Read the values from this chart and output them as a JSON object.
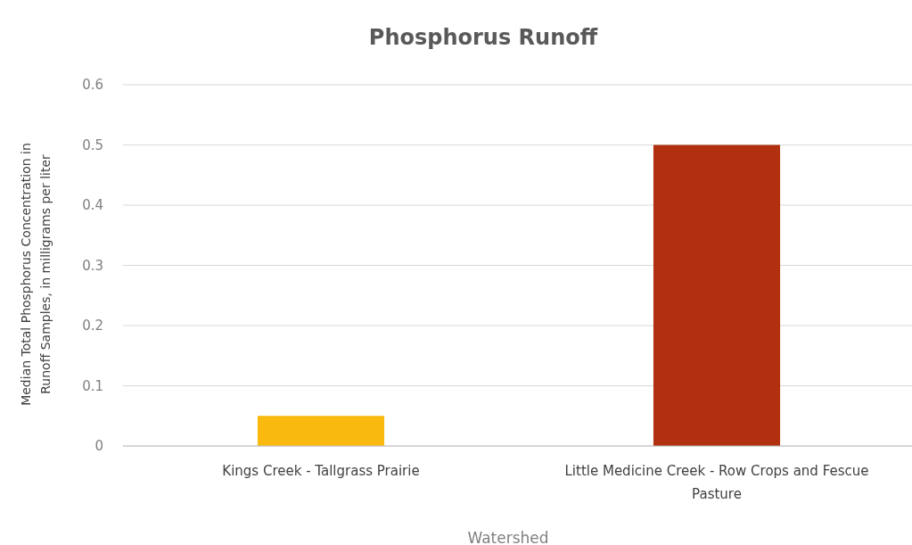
{
  "chart_data": {
    "type": "bar",
    "title": "Phosphorus Runoff",
    "xlabel": "Watershed",
    "ylabel": "Median Total Phosphorus Concentration in Runoff Samples, in milligrams per liter",
    "categories": [
      "Kings Creek - Tallgrass Prairie",
      "Little Medicine Creek - Row Crops and Fescue Pasture"
    ],
    "values": [
      0.05,
      0.5
    ],
    "colors": [
      "#f9b90f",
      "#b0300f"
    ],
    "ylim": [
      0,
      0.6
    ],
    "yticks": [
      0,
      0.1,
      0.2,
      0.3,
      0.4,
      0.5,
      0.6
    ],
    "grid": "y"
  }
}
